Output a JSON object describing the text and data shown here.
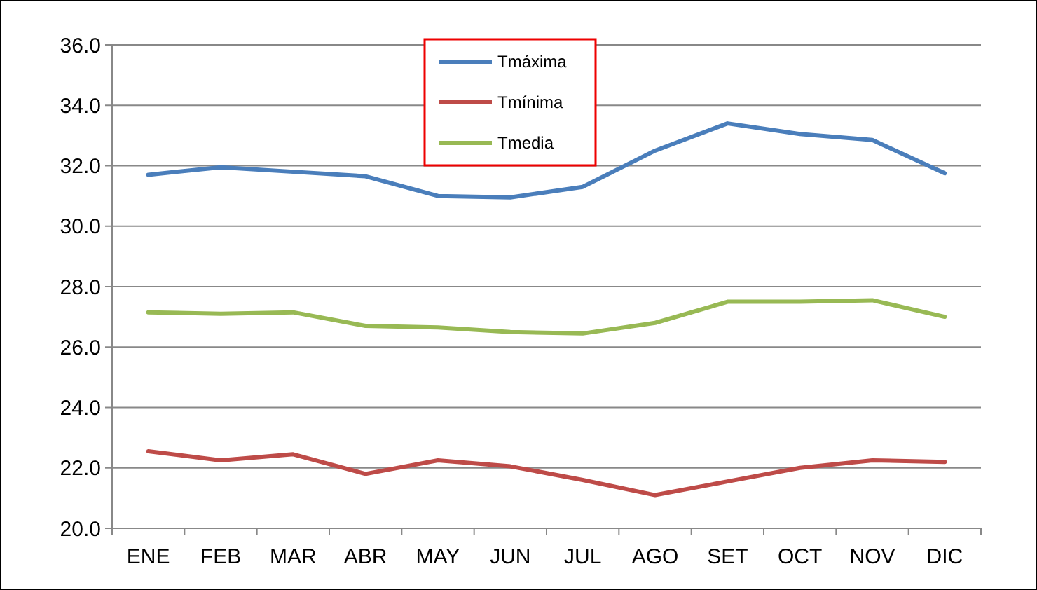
{
  "chart_data": {
    "type": "line",
    "categories": [
      "ENE",
      "FEB",
      "MAR",
      "ABR",
      "MAY",
      "JUN",
      "JUL",
      "AGO",
      "SET",
      "OCT",
      "NOV",
      "DIC"
    ],
    "series": [
      {
        "name": "Tmáxima",
        "color": "#4a7ebb",
        "values": [
          31.7,
          31.95,
          31.8,
          31.65,
          31.0,
          30.95,
          31.3,
          32.5,
          33.4,
          33.05,
          32.85,
          31.75
        ]
      },
      {
        "name": "Tmínima",
        "color": "#be4b48",
        "values": [
          22.55,
          22.25,
          22.45,
          21.8,
          22.25,
          22.05,
          21.6,
          21.1,
          21.55,
          22.0,
          22.25,
          22.2
        ]
      },
      {
        "name": "Tmedia",
        "color": "#98b954",
        "values": [
          27.15,
          27.1,
          27.15,
          26.7,
          26.65,
          26.5,
          26.45,
          26.8,
          27.5,
          27.5,
          27.55,
          27.0
        ]
      }
    ],
    "ylim": [
      20,
      36
    ],
    "yticks": [
      {
        "value": 20,
        "label": "20.0"
      },
      {
        "value": 22,
        "label": "22.0"
      },
      {
        "value": 24,
        "label": "24.0"
      },
      {
        "value": 26,
        "label": "26.0"
      },
      {
        "value": 28,
        "label": "28.0"
      },
      {
        "value": 30,
        "label": "30.0"
      },
      {
        "value": 32,
        "label": "32.0"
      },
      {
        "value": 34,
        "label": "34.0"
      },
      {
        "value": 36,
        "label": "36.0"
      }
    ],
    "grid": "y",
    "legend": "top",
    "marker": "none",
    "line_style": "solid"
  }
}
